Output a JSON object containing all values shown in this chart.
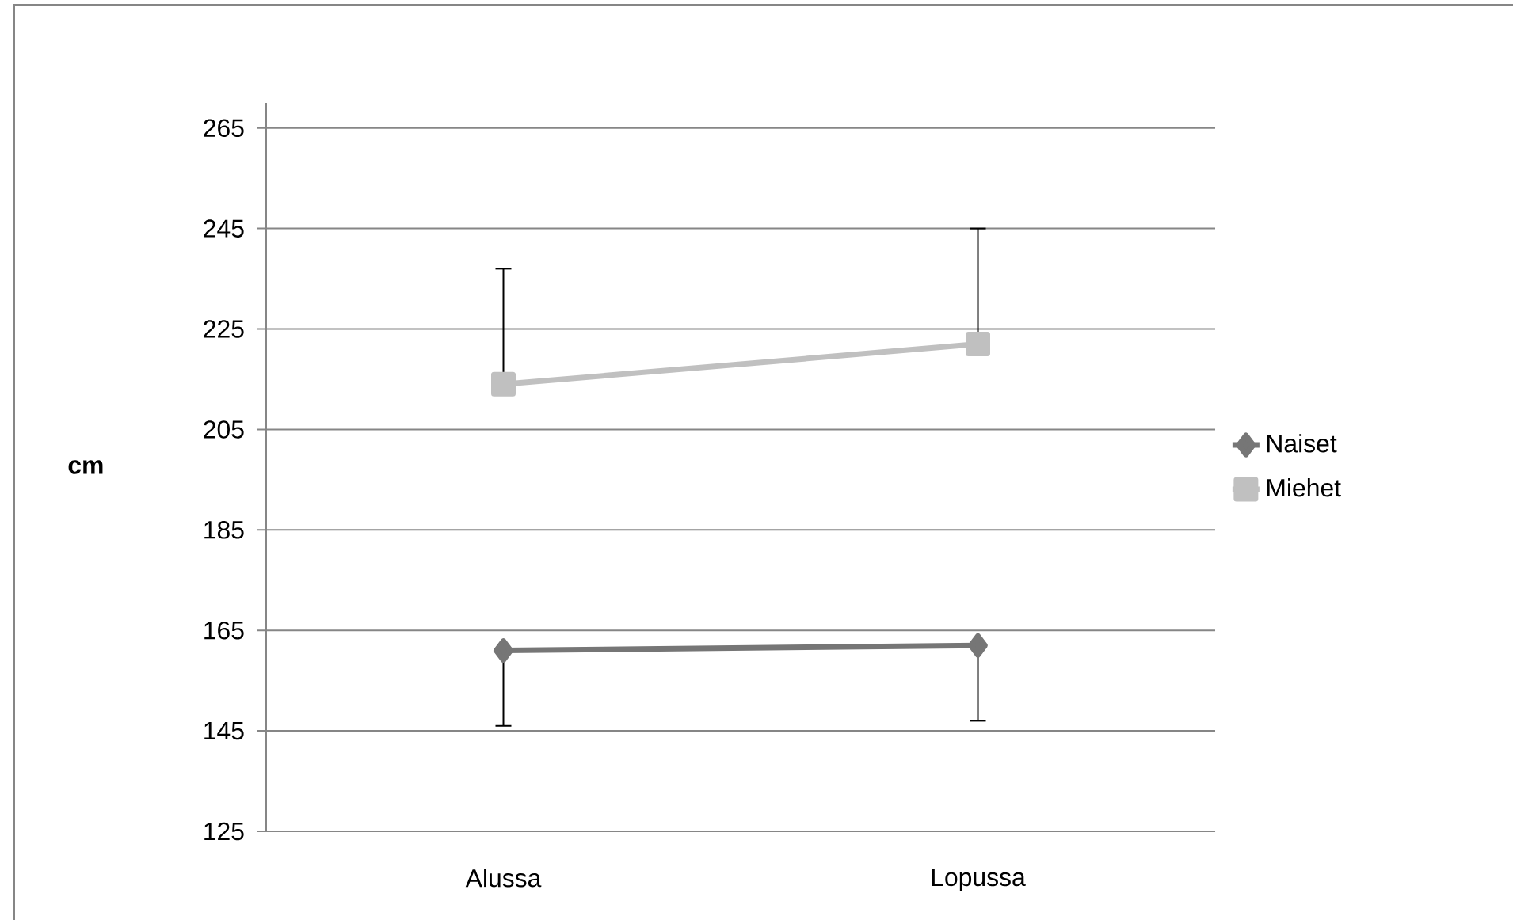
{
  "chart_data": {
    "type": "line",
    "ylabel": "cm",
    "categories": [
      "Alussa",
      "Lopussa"
    ],
    "series": [
      {
        "name": "Naiset",
        "color": "#767676",
        "marker": "diamond",
        "values": [
          161,
          162
        ],
        "errors": [
          [
            146,
            161
          ],
          [
            147,
            162
          ]
        ]
      },
      {
        "name": "Miehet",
        "color": "#c0c0c0",
        "marker": "square",
        "values": [
          214,
          222
        ],
        "errors": [
          [
            214,
            237
          ],
          [
            222,
            245
          ]
        ]
      }
    ],
    "ylim": [
      125,
      270
    ],
    "yticks": [
      125,
      145,
      165,
      185,
      205,
      225,
      245,
      265
    ],
    "grid": "y",
    "legend": "right"
  }
}
